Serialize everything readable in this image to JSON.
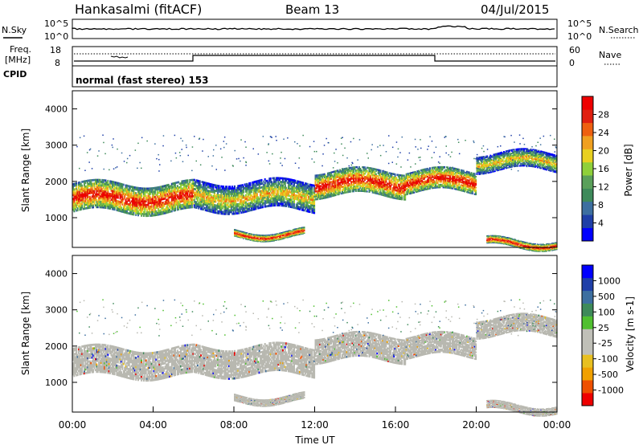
{
  "header": {
    "station": "Hankasalmi (fitACF)",
    "beam": "Beam 13",
    "date": "04/Jul/2015"
  },
  "top_panels": {
    "nsky_label": "N.Sky",
    "nsearch_label": "N.Search",
    "nsky_ticks": [
      "10^5",
      "10^0"
    ],
    "nsearch_ticks": [
      "10^5",
      "10^0"
    ],
    "freq_label_1": "Freq.",
    "freq_label_2": "[MHz]",
    "freq_ticks": [
      "18",
      "8"
    ],
    "nave_label": "Nave",
    "nave_ticks": [
      "60",
      "0"
    ],
    "cpid_label": "CPID",
    "cpid_value": "normal (fast stereo) 153"
  },
  "colors": {
    "power_scale": [
      "#0000ff",
      "#1f3fa8",
      "#3d6fa0",
      "#3e8a5a",
      "#5aa05a",
      "#8fd03a",
      "#e8d020",
      "#f0a020",
      "#ee6010",
      "#e02010",
      "#ee0000"
    ],
    "velocity_scale": [
      "#ee0000",
      "#ee5000",
      "#f0a000",
      "#e8c020",
      "#c0c0b8",
      "#c0c0b8",
      "#50c030",
      "#3e8a5a",
      "#3d6fa0",
      "#1f3fa8",
      "#0000ff"
    ],
    "ground_scatter": "#b8b8b0"
  },
  "chart_data": [
    {
      "type": "heatmap",
      "name": "power",
      "ylabel": "Slant Range [km]",
      "xlabel": "",
      "colorbar_label": "Power [dB]",
      "colorbar_ticks": [
        "28",
        "24",
        "20",
        "16",
        "12",
        "8",
        "4"
      ],
      "xlim": [
        0,
        24
      ],
      "ylim": [
        180,
        4500
      ],
      "y_ticks": [
        "4000",
        "3000",
        "2000",
        "1000"
      ],
      "y_tick_values": [
        4000,
        3000,
        2000,
        1000
      ],
      "bands": [
        {
          "t": [
            0.0,
            6.0
          ],
          "range": [
            1150,
            1950
          ],
          "color_level": "high"
        },
        {
          "t": [
            6.0,
            12.0
          ],
          "range": [
            1200,
            2000
          ],
          "color_level": "mid"
        },
        {
          "t": [
            12.0,
            16.5
          ],
          "range": [
            1600,
            2300
          ],
          "color_level": "high"
        },
        {
          "t": [
            16.5,
            20.0
          ],
          "range": [
            1700,
            2300
          ],
          "color_level": "high"
        },
        {
          "t": [
            20.0,
            24.0
          ],
          "range": [
            2300,
            2800
          ],
          "color_level": "mid"
        },
        {
          "t": [
            8.0,
            11.5
          ],
          "range": [
            450,
            650
          ],
          "color_level": "high"
        },
        {
          "t": [
            20.5,
            24.0
          ],
          "range": [
            180,
            400
          ],
          "color_level": "high"
        }
      ]
    },
    {
      "type": "heatmap",
      "name": "velocity",
      "ylabel": "Slant Range [km]",
      "xlabel": "Time UT",
      "colorbar_label": "Velocity [m s-1]",
      "colorbar_ticks": [
        "1000",
        "500",
        "100",
        "25",
        "-25",
        "-100",
        "-500",
        "-1000"
      ],
      "xlim": [
        0,
        24
      ],
      "ylim": [
        180,
        4500
      ],
      "x_ticks": [
        "00:00",
        "04:00",
        "08:00",
        "12:00",
        "16:00",
        "20:00",
        "00:00"
      ],
      "x_tick_values": [
        0,
        4,
        8,
        12,
        16,
        20,
        24
      ],
      "y_ticks": [
        "4000",
        "3000",
        "2000",
        "1000"
      ],
      "y_tick_values": [
        4000,
        3000,
        2000,
        1000
      ]
    }
  ]
}
